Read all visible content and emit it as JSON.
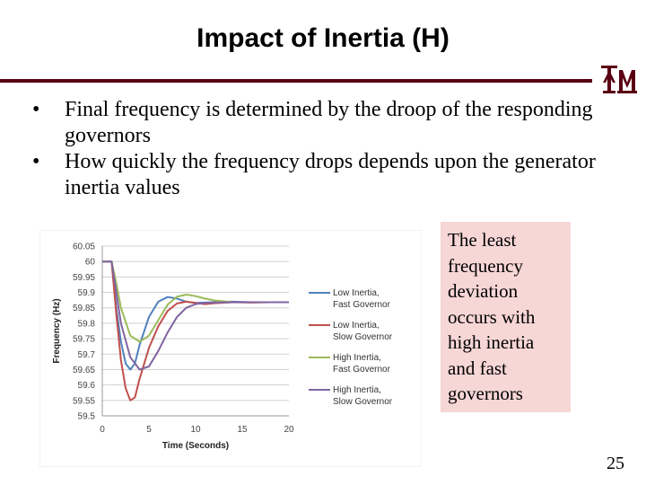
{
  "slide": {
    "title": "Impact of Inertia (H)",
    "bullets": [
      "Final frequency is determined by the droop of the responding governors",
      "How quickly the frequency drops depends upon the generator inertia values"
    ],
    "callout": "The least frequency deviation occurs with high inertia and fast governors",
    "page_number": "25",
    "bullet_glyph": "•",
    "logo_text": "ĀM",
    "colors": {
      "accent": "#5a0014",
      "callout_bg": "#f7d6d6"
    }
  },
  "chart_data": {
    "type": "line",
    "xlabel": "Time (Seconds)",
    "ylabel": "Frequency (Hz)",
    "xlim": [
      0,
      20
    ],
    "ylim": [
      59.5,
      60.05
    ],
    "x_ticks": [
      "0",
      "5",
      "10",
      "15",
      "20"
    ],
    "y_ticks": [
      "60.05",
      "60",
      "59.95",
      "59.9",
      "59.85",
      "59.8",
      "59.75",
      "59.7",
      "59.65",
      "59.6",
      "59.55",
      "59.5"
    ],
    "grid": true,
    "legend_position": "right",
    "series": [
      {
        "name": "Low Inertia, Fast Governor",
        "color": "#4f81bd",
        "x": [
          0,
          1,
          1.5,
          2,
          2.5,
          3,
          3.5,
          4,
          5,
          6,
          7,
          8,
          9,
          10,
          12,
          14,
          16,
          18,
          20
        ],
        "y": [
          60,
          60,
          59.85,
          59.74,
          59.67,
          59.65,
          59.67,
          59.73,
          59.82,
          59.87,
          59.885,
          59.88,
          59.87,
          59.866,
          59.868,
          59.87,
          59.868,
          59.868,
          59.868
        ]
      },
      {
        "name": "Low Inertia, Slow Governor",
        "color": "#c0504d",
        "x": [
          0,
          1,
          1.5,
          2,
          2.5,
          3,
          3.5,
          4,
          5,
          6,
          7,
          8,
          9,
          10,
          11,
          12,
          14,
          16,
          18,
          20
        ],
        "y": [
          60,
          60,
          59.83,
          59.68,
          59.59,
          59.55,
          59.56,
          59.62,
          59.72,
          59.79,
          59.84,
          59.864,
          59.87,
          59.866,
          59.862,
          59.865,
          59.868,
          59.867,
          59.868,
          59.868
        ]
      },
      {
        "name": "High Inertia, Fast Governor",
        "color": "#9bbb59",
        "x": [
          0,
          1,
          1.5,
          2,
          3,
          4,
          5,
          6,
          7,
          8,
          9,
          10,
          11,
          12,
          14,
          16,
          18,
          20
        ],
        "y": [
          60,
          60,
          59.93,
          59.85,
          59.76,
          59.74,
          59.76,
          59.81,
          59.86,
          59.886,
          59.893,
          59.888,
          59.88,
          59.874,
          59.868,
          59.868,
          59.868,
          59.868
        ]
      },
      {
        "name": "High Inertia, Slow Governor",
        "color": "#8064a2",
        "x": [
          0,
          1,
          1.5,
          2,
          3,
          4,
          5,
          6,
          7,
          8,
          9,
          10,
          11,
          12,
          14,
          16,
          18,
          20
        ],
        "y": [
          60,
          60,
          59.9,
          59.8,
          59.69,
          59.65,
          59.66,
          59.71,
          59.77,
          59.82,
          59.85,
          59.862,
          59.866,
          59.867,
          59.868,
          59.868,
          59.868,
          59.868
        ]
      }
    ]
  }
}
